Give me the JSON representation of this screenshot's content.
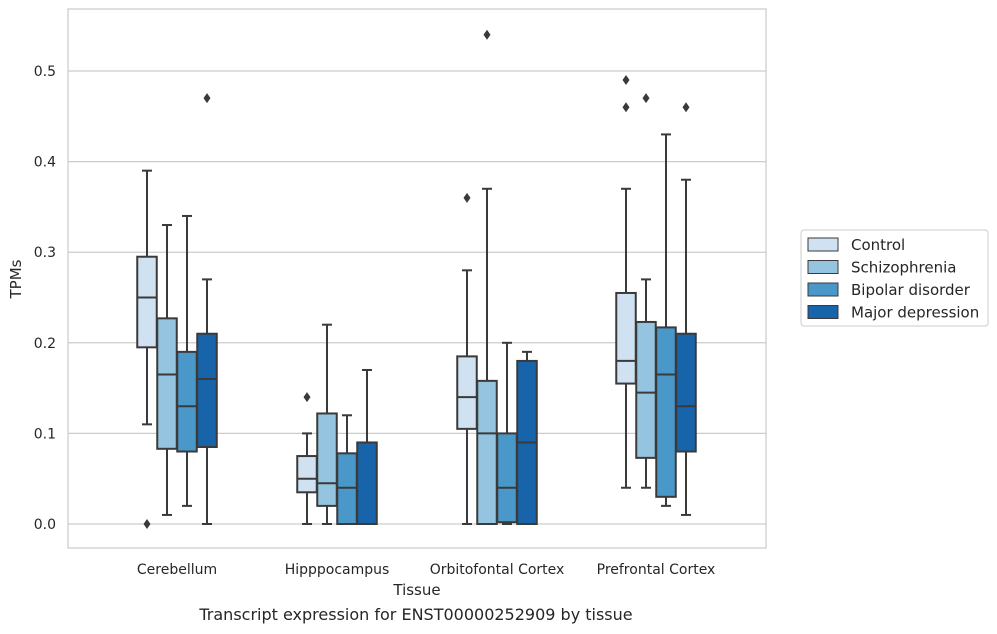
{
  "caption": "Transcript expression for ENST00000252909 by tissue",
  "chart_data": {
    "type": "box",
    "xlabel": "Tissue",
    "ylabel": "TPMs",
    "ylim": [
      -0.026,
      0.566
    ],
    "yticks": [
      0.0,
      0.1,
      0.2,
      0.3,
      0.4,
      0.5
    ],
    "ytick_labels": [
      "0.0",
      "0.1",
      "0.2",
      "0.3",
      "0.4",
      "0.5"
    ],
    "grid": "horizontal",
    "legend_position": "right",
    "categories": [
      "Cerebellum",
      "Hipppocampus",
      "Orbitofontal Cortex",
      "Prefrontal Cortex"
    ],
    "series": [
      {
        "name": "Control",
        "color": "#d0e1f2",
        "boxes": [
          {
            "whislo": 0.11,
            "q1": 0.195,
            "med": 0.25,
            "q3": 0.295,
            "whishi": 0.39,
            "fliers": [
              0.0
            ]
          },
          {
            "whislo": 0.0,
            "q1": 0.035,
            "med": 0.05,
            "q3": 0.075,
            "whishi": 0.1,
            "fliers": [
              0.14
            ]
          },
          {
            "whislo": 0.0,
            "q1": 0.105,
            "med": 0.14,
            "q3": 0.185,
            "whishi": 0.28,
            "fliers": [
              0.36
            ]
          },
          {
            "whislo": 0.04,
            "q1": 0.155,
            "med": 0.18,
            "q3": 0.255,
            "whishi": 0.37,
            "fliers": [
              0.46,
              0.49
            ]
          }
        ]
      },
      {
        "name": "Schizophrenia",
        "color": "#94c4df",
        "boxes": [
          {
            "whislo": 0.01,
            "q1": 0.083,
            "med": 0.165,
            "q3": 0.227,
            "whishi": 0.33,
            "fliers": []
          },
          {
            "whislo": 0.0,
            "q1": 0.02,
            "med": 0.045,
            "q3": 0.122,
            "whishi": 0.22,
            "fliers": []
          },
          {
            "whislo": 0.0,
            "q1": 0.0,
            "med": 0.1,
            "q3": 0.158,
            "whishi": 0.37,
            "fliers": [
              0.54
            ]
          },
          {
            "whislo": 0.04,
            "q1": 0.073,
            "med": 0.145,
            "q3": 0.223,
            "whishi": 0.27,
            "fliers": [
              0.47
            ]
          }
        ]
      },
      {
        "name": "Bipolar disorder",
        "color": "#4a98c9",
        "boxes": [
          {
            "whislo": 0.02,
            "q1": 0.08,
            "med": 0.13,
            "q3": 0.19,
            "whishi": 0.34,
            "fliers": []
          },
          {
            "whislo": 0.0,
            "q1": 0.0,
            "med": 0.04,
            "q3": 0.078,
            "whishi": 0.12,
            "fliers": []
          },
          {
            "whislo": 0.0,
            "q1": 0.002,
            "med": 0.04,
            "q3": 0.1,
            "whishi": 0.2,
            "fliers": []
          },
          {
            "whislo": 0.02,
            "q1": 0.03,
            "med": 0.165,
            "q3": 0.217,
            "whishi": 0.43,
            "fliers": []
          }
        ]
      },
      {
        "name": "Major depression",
        "color": "#1764ab",
        "boxes": [
          {
            "whislo": 0.0,
            "q1": 0.085,
            "med": 0.16,
            "q3": 0.21,
            "whishi": 0.27,
            "fliers": [
              0.47
            ]
          },
          {
            "whislo": 0.0,
            "q1": 0.0,
            "med": 0.0,
            "q3": 0.09,
            "whishi": 0.17,
            "fliers": []
          },
          {
            "whislo": 0.0,
            "q1": 0.0,
            "med": 0.09,
            "q3": 0.18,
            "whishi": 0.19,
            "fliers": []
          },
          {
            "whislo": 0.01,
            "q1": 0.08,
            "med": 0.13,
            "q3": 0.21,
            "whishi": 0.38,
            "fliers": [
              0.46
            ]
          }
        ]
      }
    ]
  }
}
